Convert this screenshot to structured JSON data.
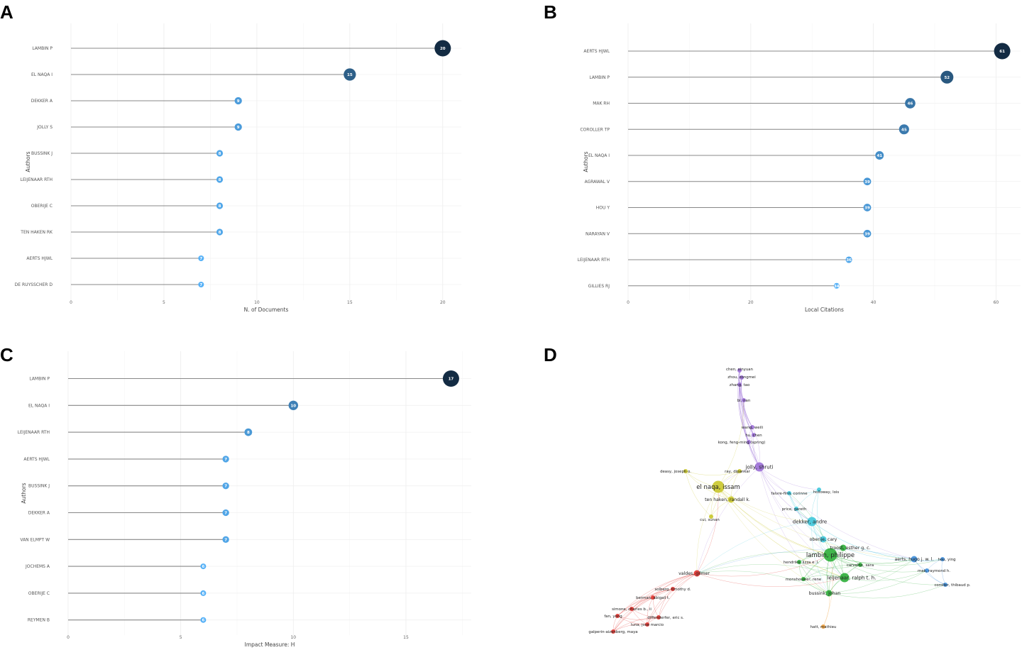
{
  "panels": {
    "a": "A",
    "b": "B",
    "c": "C",
    "d": "D"
  },
  "chart_data": [
    {
      "type": "bar",
      "style": "lollipop",
      "panel": "A",
      "categories": [
        "LAMBIN P",
        "EL NAQA I",
        "DEKKER A",
        "JOLLY S",
        "BUSSINK J",
        "LEIJENAAR RTH",
        "OBERIJE C",
        "TEN HAKEN RK",
        "AERTS HJWL",
        "DE RUYSSCHER D"
      ],
      "values": [
        20,
        15,
        9,
        9,
        8,
        8,
        8,
        8,
        7,
        7
      ],
      "xlabel": "N. of Documents",
      "ylabel": "Authors",
      "xlim": [
        0,
        21
      ],
      "xticks": [
        0,
        5,
        10,
        15,
        20
      ],
      "grid": true,
      "colors": {
        "low": "#56B1F7",
        "high": "#132B43"
      }
    },
    {
      "type": "bar",
      "style": "lollipop",
      "panel": "B",
      "categories": [
        "AERTS HJWL",
        "LAMBIN P",
        "MAK RH",
        "COROLLER TP",
        "EL NAQA I",
        "AGRAWAL V",
        "HOU Y",
        "NARAYAN V",
        "LEIJENAAR RTH",
        "GILLIES RJ"
      ],
      "values": [
        61,
        52,
        46,
        45,
        41,
        39,
        39,
        39,
        36,
        34
      ],
      "xlabel": "Local Citations",
      "ylabel": "Authors",
      "xlim": [
        0,
        64
      ],
      "xticks": [
        0,
        20,
        40,
        60
      ],
      "grid": true,
      "colors": {
        "low": "#56B1F7",
        "high": "#132B43"
      }
    },
    {
      "type": "bar",
      "style": "lollipop",
      "panel": "C",
      "categories": [
        "LAMBIN P",
        "EL NAQA I",
        "LEIJENAAR RTH",
        "AERTS HJWL",
        "BUSSINK J",
        "DEKKER A",
        "VAN ELMPT W",
        "JOCHEMS A",
        "OBERIJE C",
        "REYMEN B"
      ],
      "values": [
        17,
        10,
        8,
        7,
        7,
        7,
        7,
        6,
        6,
        6
      ],
      "xlabel": "Impact Measure: H",
      "ylabel": "Authors",
      "xlim": [
        0,
        17.9
      ],
      "xticks": [
        0,
        5,
        10,
        15
      ],
      "grid": true,
      "colors": {
        "low": "#56B1F7",
        "high": "#132B43"
      }
    },
    {
      "type": "network",
      "panel": "D",
      "clusters": {
        "red": "#E0322E",
        "green": "#2EAE3A",
        "blue": "#3E8EDB",
        "yellow": "#C9C62A",
        "purple": "#9B6FD6",
        "cyan": "#3FC7DA",
        "orange": "#F0A03A"
      },
      "nodes": [
        {
          "label": "chen, xinyuan",
          "cluster": "purple",
          "size": 1
        },
        {
          "label": "zhou, zongmei",
          "cluster": "purple",
          "size": 1
        },
        {
          "label": "zhang, tao",
          "cluster": "purple",
          "size": 1
        },
        {
          "label": "bi, nan",
          "cluster": "purple",
          "size": 1
        },
        {
          "label": "wang, weili",
          "cluster": "purple",
          "size": 1
        },
        {
          "label": "hu, chen",
          "cluster": "purple",
          "size": 1
        },
        {
          "label": "kong, feng-ming (spring)",
          "cluster": "purple",
          "size": 1
        },
        {
          "label": "jolly, shruti",
          "cluster": "purple",
          "size": 3
        },
        {
          "label": "deasy, joseph o.",
          "cluster": "yellow",
          "size": 1
        },
        {
          "label": "ray, dipankar",
          "cluster": "yellow",
          "size": 1
        },
        {
          "label": "el naqa, issam",
          "cluster": "yellow",
          "size": 4
        },
        {
          "label": "ten haken, randall k.",
          "cluster": "yellow",
          "size": 2
        },
        {
          "label": "cui, sunan",
          "cluster": "yellow",
          "size": 1
        },
        {
          "label": "faivre-finn, corinne",
          "cluster": "cyan",
          "size": 1
        },
        {
          "label": "holloway, lois",
          "cluster": "cyan",
          "size": 1
        },
        {
          "label": "price, gareth",
          "cluster": "cyan",
          "size": 1
        },
        {
          "label": "dekker, andre",
          "cluster": "cyan",
          "size": 3
        },
        {
          "label": "oberije, cary",
          "cluster": "cyan",
          "size": 2
        },
        {
          "label": "lambin, philippe",
          "cluster": "green",
          "size": 5
        },
        {
          "label": "troost, esther g. c.",
          "cluster": "green",
          "size": 2
        },
        {
          "label": "hendriks, lizza e. l.",
          "cluster": "green",
          "size": 1
        },
        {
          "label": "carvalho, sara",
          "cluster": "green",
          "size": 1
        },
        {
          "label": "leijenaar, ralph t. h.",
          "cluster": "green",
          "size": 3
        },
        {
          "label": "monshouwer, rene",
          "cluster": "green",
          "size": 1
        },
        {
          "label": "bussink, johan",
          "cluster": "green",
          "size": 2
        },
        {
          "label": "aerts, hugo j. w. l.",
          "cluster": "blue",
          "size": 2
        },
        {
          "label": "hou, ying",
          "cluster": "blue",
          "size": 1
        },
        {
          "label": "mak, raymond h.",
          "cluster": "blue",
          "size": 1
        },
        {
          "label": "coroller, thibaud p.",
          "cluster": "blue",
          "size": 1
        },
        {
          "label": "valdes, gilmer",
          "cluster": "red",
          "size": 2
        },
        {
          "label": "solberg, timothy d.",
          "cluster": "red",
          "size": 1
        },
        {
          "label": "berman, abigail t.",
          "cluster": "red",
          "size": 1
        },
        {
          "label": "simone, charles b., ii",
          "cluster": "red",
          "size": 1
        },
        {
          "label": "fan, yong",
          "cluster": "red",
          "size": 1
        },
        {
          "label": "diffenderfer, eric s.",
          "cluster": "red",
          "size": 1
        },
        {
          "label": "luna, jose marcio",
          "cluster": "red",
          "size": 1
        },
        {
          "label": "galperin-aizenberg, maya",
          "cluster": "red",
          "size": 1
        },
        {
          "label": "hatt, mathieu",
          "cluster": "orange",
          "size": 1
        }
      ]
    }
  ]
}
